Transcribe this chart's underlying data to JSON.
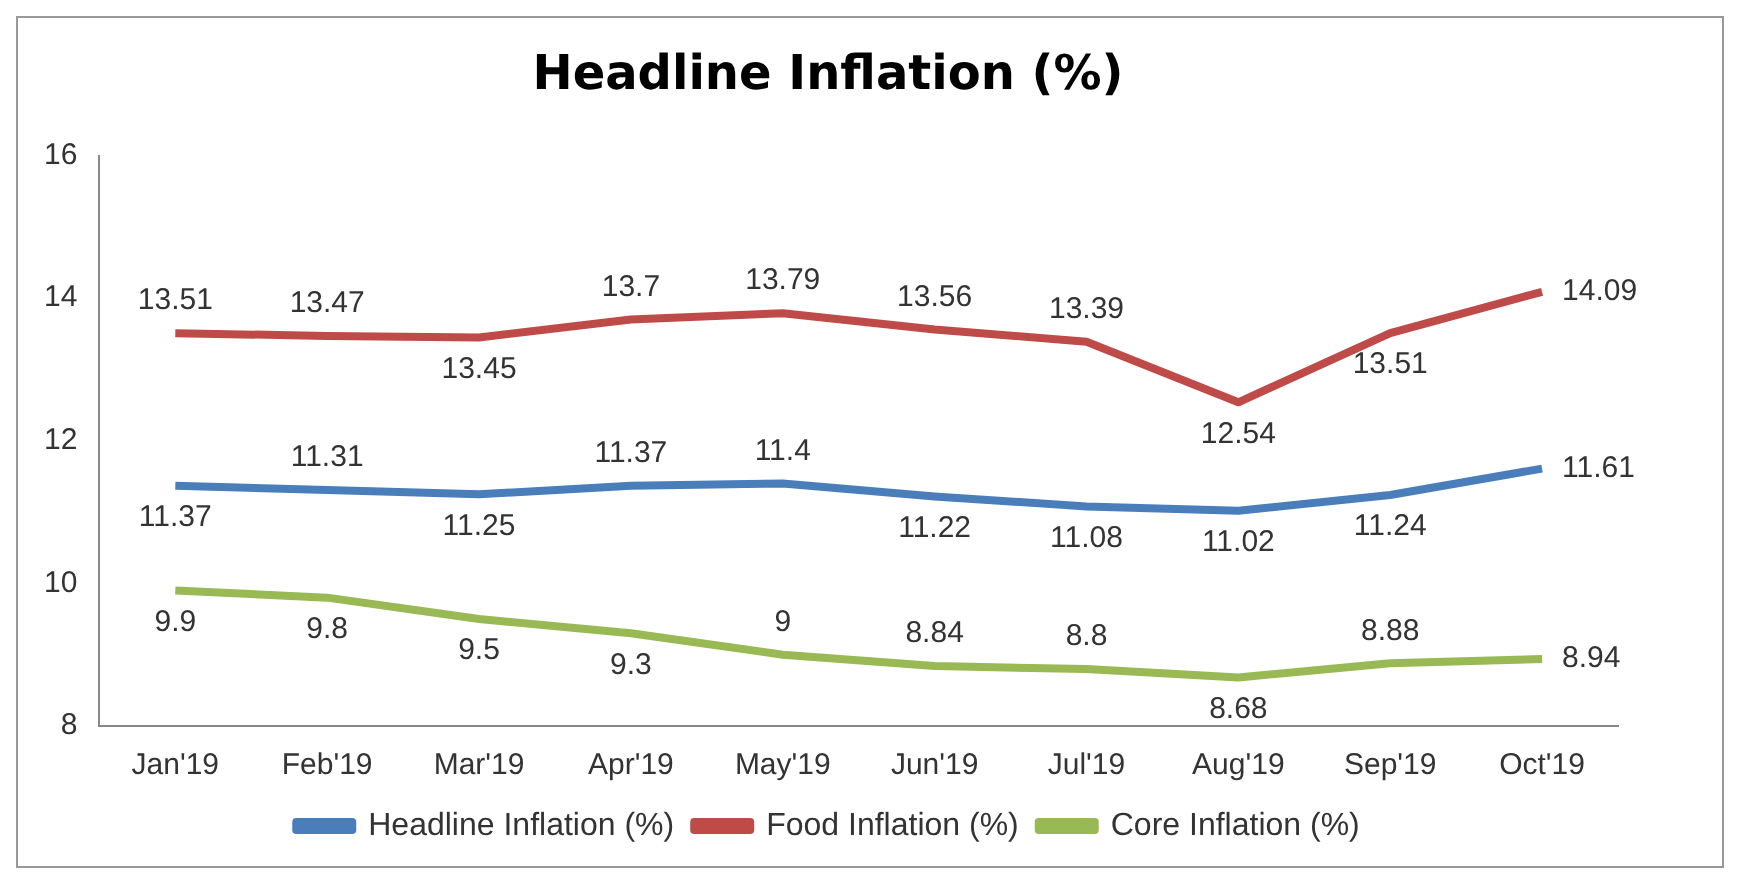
{
  "chart_data": {
    "type": "line",
    "title": "Headline Inflation (%)",
    "categories": [
      "Jan'19",
      "Feb'19",
      "Mar'19",
      "Apr'19",
      "May'19",
      "Jun'19",
      "Jul'19",
      "Aug'19",
      "Sep'19",
      "Oct'19"
    ],
    "series": [
      {
        "name": "Headline Inflation (%)",
        "color": "#4a7ebb",
        "values": [
          11.37,
          11.31,
          11.25,
          11.37,
          11.4,
          11.22,
          11.08,
          11.02,
          11.24,
          11.61
        ]
      },
      {
        "name": "Food Inflation (%)",
        "color": "#be4b48",
        "values": [
          13.51,
          13.47,
          13.45,
          13.7,
          13.79,
          13.56,
          13.39,
          12.54,
          13.51,
          14.09
        ]
      },
      {
        "name": "Core Inflation (%)",
        "color": "#98b954",
        "values": [
          9.9,
          9.8,
          9.5,
          9.3,
          9,
          8.84,
          8.8,
          8.68,
          8.88,
          8.94
        ]
      }
    ],
    "ylim": [
      8,
      16
    ],
    "yticks": [
      8,
      10,
      12,
      14,
      16
    ],
    "grid": false,
    "legend": "bottom",
    "marker": "none",
    "line_style": "solid",
    "data_labels": true
  }
}
